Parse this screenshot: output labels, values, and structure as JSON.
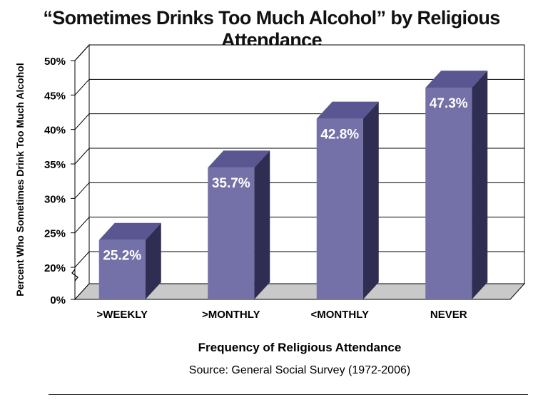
{
  "chart_data": {
    "type": "bar",
    "title": "“Sometimes Drinks Too Much Alcohol” by Religious Attendance",
    "xlabel": "Frequency of Religious Attendance",
    "ylabel": "Percent Who Sometimes Drink Too Much Alcohol",
    "source": "Source: General Social Survey (1972-2006)",
    "categories": [
      ">WEEKLY",
      ">MONTHLY",
      "<MONTHLY",
      "NEVER"
    ],
    "values": [
      25.2,
      35.7,
      42.8,
      47.3
    ],
    "value_labels": [
      "25.2%",
      "35.7%",
      "42.8%",
      "47.3%"
    ],
    "yticks": [
      {
        "label": "0%",
        "value": 0
      },
      {
        "label": "20%",
        "value": 20
      },
      {
        "label": "25%",
        "value": 25
      },
      {
        "label": "30%",
        "value": 30
      },
      {
        "label": "35%",
        "value": 35
      },
      {
        "label": "40%",
        "value": 40
      },
      {
        "label": "45%",
        "value": 45
      },
      {
        "label": "50%",
        "value": 50
      }
    ],
    "ylim": [
      0,
      50
    ],
    "axis_break": [
      0,
      20
    ],
    "grid": true,
    "style": "3d-bar",
    "colors": {
      "bar_front": "#7470a8",
      "bar_side": "#2f2d52",
      "bar_top": "#5a5691",
      "floor": "#c9c9c9",
      "value_text": "#ffffff"
    }
  }
}
